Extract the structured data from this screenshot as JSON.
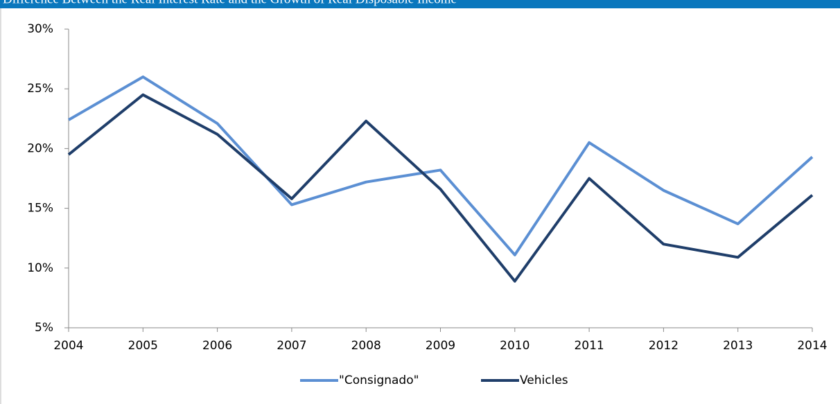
{
  "chart_data": {
    "type": "line",
    "title": "Difference Between the Real Interest Rate and the Growth of Real Disposable Income",
    "categories": [
      "2004",
      "2005",
      "2006",
      "2007",
      "2008",
      "2009",
      "2010",
      "2011",
      "2012",
      "2013",
      "2014"
    ],
    "series": [
      {
        "name": "\"Consignado\"",
        "color": "#5b8fd3",
        "values": [
          22.4,
          26.0,
          22.1,
          15.3,
          17.2,
          18.2,
          11.1,
          20.5,
          16.5,
          13.7,
          19.3
        ]
      },
      {
        "name": "Vehicles",
        "color": "#1f3e6a",
        "values": [
          19.5,
          24.5,
          21.2,
          15.8,
          22.3,
          16.6,
          8.9,
          17.5,
          12.0,
          10.9,
          16.1
        ]
      }
    ],
    "ylim": [
      5,
      30
    ],
    "yticks": [
      {
        "value": 5,
        "label": "5%"
      },
      {
        "value": 10,
        "label": "10%"
      },
      {
        "value": 15,
        "label": "15%"
      },
      {
        "value": 20,
        "label": "20%"
      },
      {
        "value": 25,
        "label": "25%"
      },
      {
        "value": 30,
        "label": "30%"
      }
    ],
    "legend": "bottom"
  }
}
